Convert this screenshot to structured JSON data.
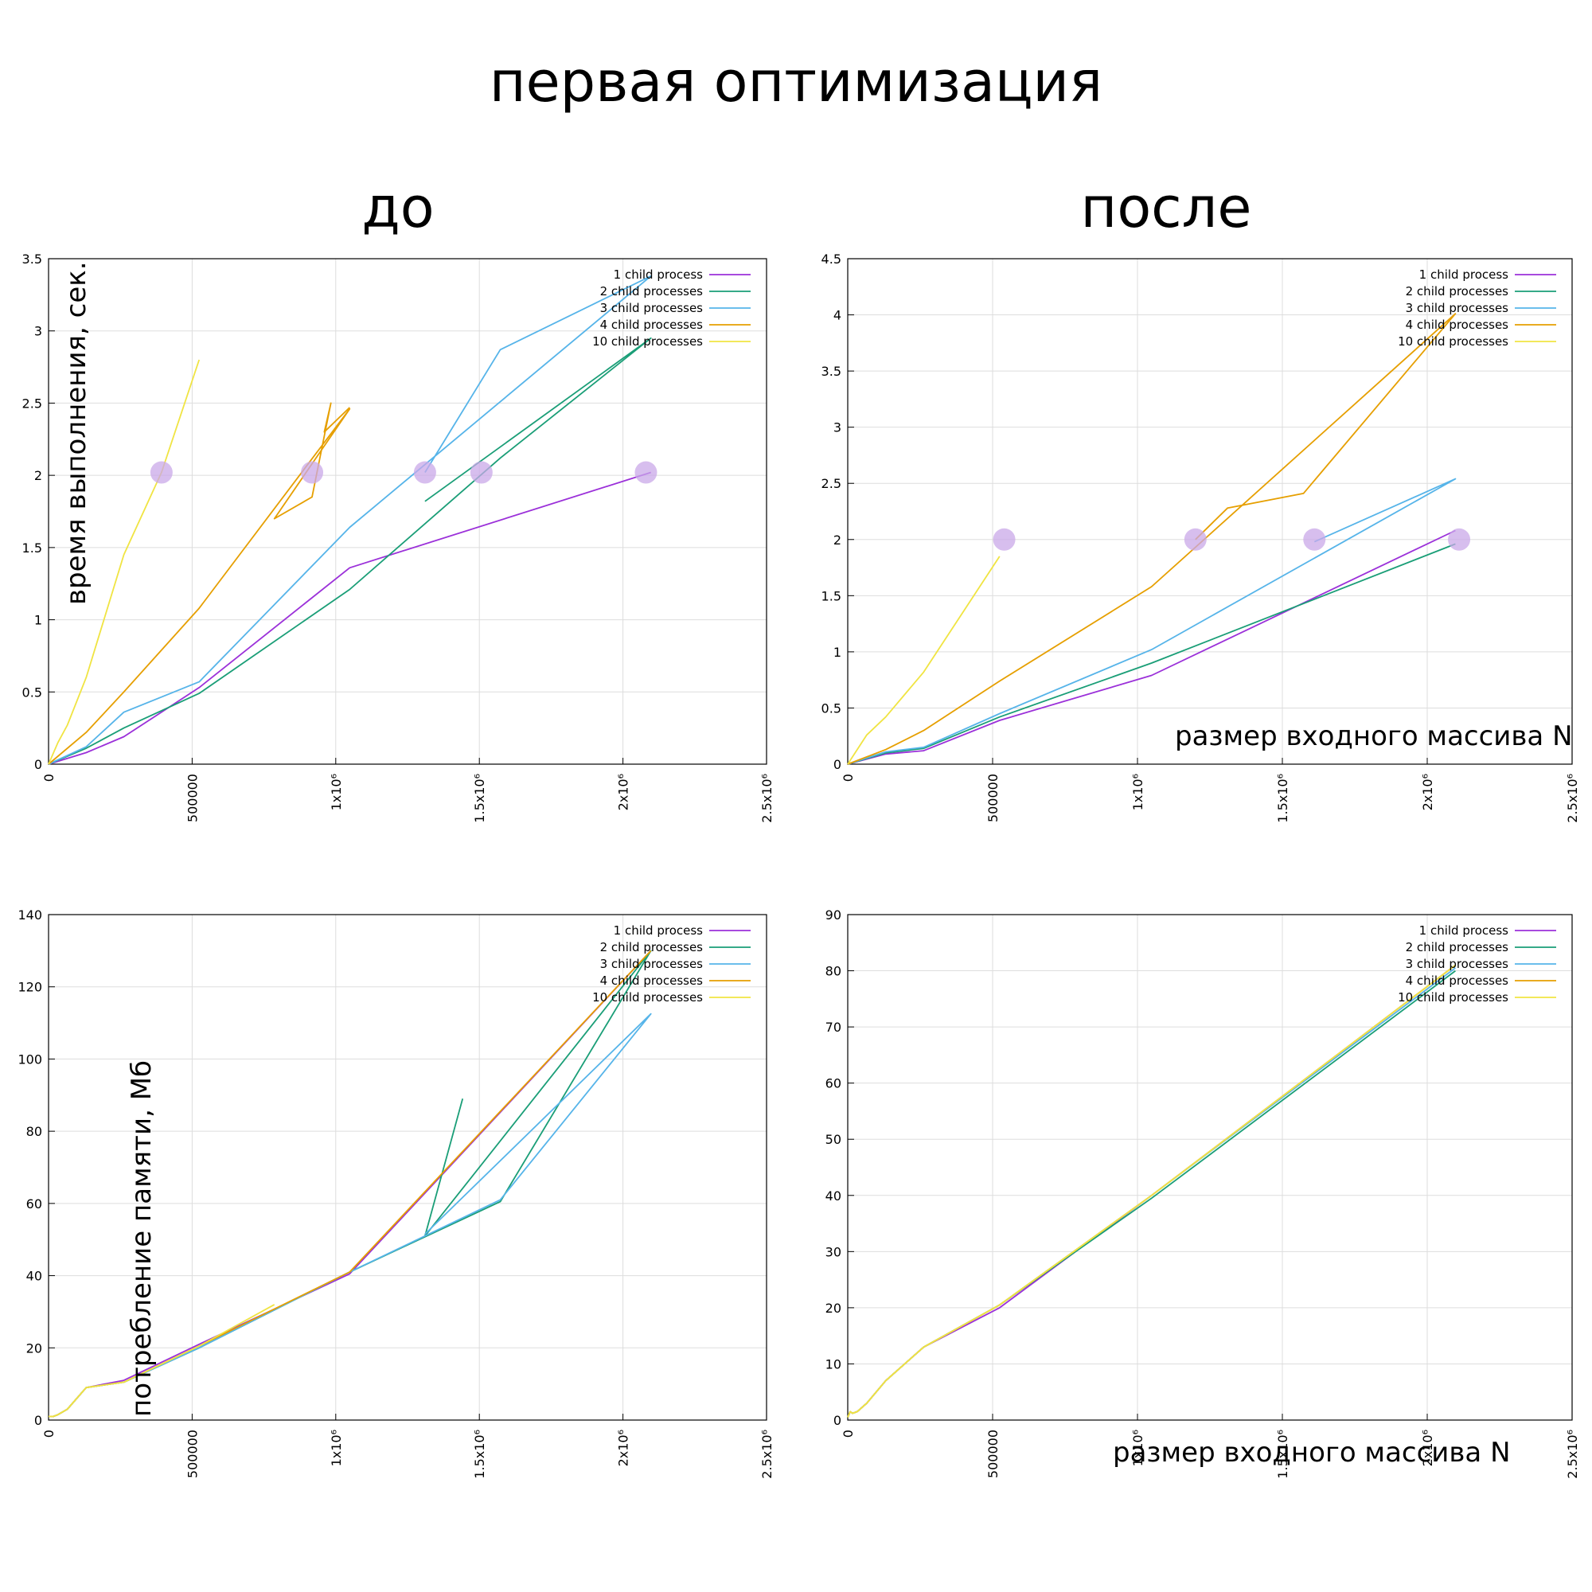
{
  "page": {
    "title": "первая оптимизация",
    "col_before": "до",
    "col_after": "после"
  },
  "colors": {
    "1 child process": "#9b30d9",
    "2 child processes": "#1a9e77",
    "3 child processes": "#56b4e9",
    "4 child processes": "#e69f00",
    "10 child processes": "#f0e442",
    "marker": "#c9a8e8"
  },
  "chart_data": [
    {
      "id": "time_before",
      "type": "line",
      "ylabel": "время выполнения, сек.",
      "xlabel": "",
      "xlim": [
        0,
        2500000
      ],
      "ylim": [
        0,
        3.5
      ],
      "xticks": [
        {
          "v": 0,
          "t": "0"
        },
        {
          "v": 500000,
          "t": "500000"
        },
        {
          "v": 1000000,
          "t": "1x10⁶"
        },
        {
          "v": 1500000,
          "t": "1.5x10⁶"
        },
        {
          "v": 2000000,
          "t": "2x10⁶"
        },
        {
          "v": 2500000,
          "t": "2.5x10⁶"
        }
      ],
      "yticks": [
        {
          "v": 0,
          "t": "0"
        },
        {
          "v": 0.5,
          "t": "0.5"
        },
        {
          "v": 1,
          "t": "1"
        },
        {
          "v": 1.5,
          "t": "1.5"
        },
        {
          "v": 2,
          "t": "2"
        },
        {
          "v": 2.5,
          "t": "2.5"
        },
        {
          "v": 3,
          "t": "3"
        },
        {
          "v": 3.5,
          "t": "3.5"
        }
      ],
      "grid": true,
      "legend": "top-right",
      "series": [
        {
          "name": "1 child process",
          "points": [
            [
              0,
              0
            ],
            [
              131072,
              0.08
            ],
            [
              262144,
              0.19
            ],
            [
              524288,
              0.53
            ],
            [
              1048576,
              1.36
            ],
            [
              2097152,
              2.02
            ]
          ]
        },
        {
          "name": "2 child processes",
          "points": [
            [
              0,
              0
            ],
            [
              131072,
              0.11
            ],
            [
              262144,
              0.25
            ],
            [
              524288,
              0.49
            ],
            [
              1048576,
              1.21
            ],
            [
              1572864,
              2.12
            ],
            [
              2097152,
              2.95
            ],
            [
              1310720,
              1.82
            ]
          ]
        },
        {
          "name": "3 child processes",
          "points": [
            [
              0,
              0
            ],
            [
              131072,
              0.12
            ],
            [
              262144,
              0.36
            ],
            [
              524288,
              0.57
            ],
            [
              1048576,
              1.64
            ],
            [
              2097152,
              3.38
            ],
            [
              1572864,
              2.87
            ],
            [
              1310720,
              2.02
            ]
          ]
        },
        {
          "name": "4 child processes",
          "points": [
            [
              0,
              0
            ],
            [
              131072,
              0.22
            ],
            [
              262144,
              0.5
            ],
            [
              524288,
              1.08
            ],
            [
              1048576,
              2.46
            ],
            [
              786432,
              1.7
            ],
            [
              917504,
              1.85
            ],
            [
              983040,
              2.5
            ],
            [
              960000,
              2.3
            ],
            [
              1048576,
              2.47
            ]
          ]
        },
        {
          "name": "10 child processes",
          "points": [
            [
              0,
              0
            ],
            [
              32768,
              0.15
            ],
            [
              65536,
              0.27
            ],
            [
              131072,
              0.6
            ],
            [
              262144,
              1.45
            ],
            [
              393216,
              2.02
            ],
            [
              524288,
              2.8
            ]
          ]
        }
      ],
      "markers": [
        [
          393216,
          2.02
        ],
        [
          917504,
          2.02
        ],
        [
          1310720,
          2.02
        ],
        [
          1507328,
          2.02
        ],
        [
          2080000,
          2.02
        ]
      ]
    },
    {
      "id": "time_after",
      "type": "line",
      "ylabel": "",
      "xlabel": "размер входного массива N",
      "xlim": [
        0,
        2500000
      ],
      "ylim": [
        0,
        4.5
      ],
      "xticks": [
        {
          "v": 0,
          "t": "0"
        },
        {
          "v": 500000,
          "t": "500000"
        },
        {
          "v": 1000000,
          "t": "1x10⁶"
        },
        {
          "v": 1500000,
          "t": "1.5x10⁶"
        },
        {
          "v": 2000000,
          "t": "2x10⁶"
        },
        {
          "v": 2500000,
          "t": "2.5x10⁶"
        }
      ],
      "yticks": [
        {
          "v": 0,
          "t": "0"
        },
        {
          "v": 0.5,
          "t": "0.5"
        },
        {
          "v": 1,
          "t": "1"
        },
        {
          "v": 1.5,
          "t": "1.5"
        },
        {
          "v": 2,
          "t": "2"
        },
        {
          "v": 2.5,
          "t": "2.5"
        },
        {
          "v": 3,
          "t": "3"
        },
        {
          "v": 3.5,
          "t": "3.5"
        },
        {
          "v": 4,
          "t": "4"
        },
        {
          "v": 4.5,
          "t": "4.5"
        }
      ],
      "grid": true,
      "legend": "top-right",
      "series": [
        {
          "name": "1 child process",
          "points": [
            [
              0,
              0
            ],
            [
              131072,
              0.09
            ],
            [
              262144,
              0.12
            ],
            [
              524288,
              0.39
            ],
            [
              1048576,
              0.79
            ],
            [
              2097152,
              2.08
            ]
          ]
        },
        {
          "name": "2 child processes",
          "points": [
            [
              0,
              0
            ],
            [
              131072,
              0.1
            ],
            [
              262144,
              0.14
            ],
            [
              524288,
              0.42
            ],
            [
              1048576,
              0.9
            ],
            [
              2097152,
              1.96
            ]
          ]
        },
        {
          "name": "3 child processes",
          "points": [
            [
              0,
              0
            ],
            [
              131072,
              0.11
            ],
            [
              262144,
              0.15
            ],
            [
              524288,
              0.45
            ],
            [
              1048576,
              1.02
            ],
            [
              2097152,
              2.54
            ],
            [
              1610612,
              1.98
            ]
          ]
        },
        {
          "name": "4 child processes",
          "points": [
            [
              0,
              0
            ],
            [
              131072,
              0.13
            ],
            [
              262144,
              0.3
            ],
            [
              524288,
              0.74
            ],
            [
              1048576,
              1.58
            ],
            [
              2097152,
              4.01
            ],
            [
              1572864,
              2.41
            ],
            [
              1310720,
              2.28
            ],
            [
              1200000,
              2.0
            ]
          ]
        },
        {
          "name": "10 child processes",
          "points": [
            [
              0,
              0
            ],
            [
              65536,
              0.26
            ],
            [
              131072,
              0.42
            ],
            [
              262144,
              0.82
            ],
            [
              524288,
              1.85
            ]
          ]
        }
      ],
      "markers": [
        [
          540000,
          2.0
        ],
        [
          1200000,
          2.0
        ],
        [
          1610612,
          2.0
        ],
        [
          2110000,
          2.0
        ]
      ]
    },
    {
      "id": "mem_before",
      "type": "line",
      "ylabel": "потребление памяти, Мб",
      "xlabel": "",
      "xlim": [
        0,
        2500000
      ],
      "ylim": [
        0,
        140
      ],
      "xticks": [
        {
          "v": 0,
          "t": "0"
        },
        {
          "v": 500000,
          "t": "500000"
        },
        {
          "v": 1000000,
          "t": "1x10⁶"
        },
        {
          "v": 1500000,
          "t": "1.5x10⁶"
        },
        {
          "v": 2000000,
          "t": "2x10⁶"
        },
        {
          "v": 2500000,
          "t": "2.5x10⁶"
        }
      ],
      "yticks": [
        {
          "v": 0,
          "t": "0"
        },
        {
          "v": 20,
          "t": "20"
        },
        {
          "v": 40,
          "t": "40"
        },
        {
          "v": 60,
          "t": "60"
        },
        {
          "v": 80,
          "t": "80"
        },
        {
          "v": 100,
          "t": "100"
        },
        {
          "v": 120,
          "t": "120"
        },
        {
          "v": 140,
          "t": "140"
        }
      ],
      "grid": true,
      "legend": "top-right",
      "series": [
        {
          "name": "1 child process",
          "points": [
            [
              0,
              1
            ],
            [
              16384,
              1
            ],
            [
              32768,
              1.5
            ],
            [
              65536,
              3
            ],
            [
              131072,
              9
            ],
            [
              262144,
              11
            ],
            [
              524288,
              21
            ],
            [
              1048576,
              40.5
            ],
            [
              2097152,
              130
            ]
          ]
        },
        {
          "name": "2 child processes",
          "points": [
            [
              0,
              1
            ],
            [
              16384,
              1
            ],
            [
              32768,
              1.5
            ],
            [
              65536,
              3
            ],
            [
              131072,
              9
            ],
            [
              262144,
              10.5
            ],
            [
              524288,
              20
            ],
            [
              1048576,
              41
            ],
            [
              1572864,
              60.5
            ],
            [
              2097152,
              130
            ],
            [
              1310720,
              51
            ],
            [
              1441792,
              89
            ]
          ]
        },
        {
          "name": "3 child processes",
          "points": [
            [
              0,
              1
            ],
            [
              16384,
              1
            ],
            [
              32768,
              1.5
            ],
            [
              65536,
              3
            ],
            [
              131072,
              9
            ],
            [
              262144,
              10.5
            ],
            [
              524288,
              20
            ],
            [
              1048576,
              41
            ],
            [
              1572864,
              61
            ],
            [
              2097152,
              112.5
            ],
            [
              1310720,
              51.5
            ]
          ]
        },
        {
          "name": "4 child processes",
          "points": [
            [
              0,
              1
            ],
            [
              16384,
              1
            ],
            [
              32768,
              1.5
            ],
            [
              65536,
              3
            ],
            [
              131072,
              9
            ],
            [
              262144,
              10.5
            ],
            [
              524288,
              20.5
            ],
            [
              1048576,
              41
            ],
            [
              2097152,
              130
            ]
          ]
        },
        {
          "name": "10 child processes",
          "points": [
            [
              0,
              1
            ],
            [
              16384,
              1
            ],
            [
              32768,
              1.5
            ],
            [
              65536,
              3
            ],
            [
              131072,
              9
            ],
            [
              262144,
              10.5
            ],
            [
              524288,
              20.5
            ],
            [
              786432,
              32
            ]
          ]
        }
      ],
      "markers": []
    },
    {
      "id": "mem_after",
      "type": "line",
      "ylabel": "",
      "xlabel": "размер входного массива N",
      "xlim": [
        0,
        2500000
      ],
      "ylim": [
        0,
        90
      ],
      "xticks": [
        {
          "v": 0,
          "t": "0"
        },
        {
          "v": 500000,
          "t": "500000"
        },
        {
          "v": 1000000,
          "t": "1x10⁶"
        },
        {
          "v": 1500000,
          "t": "1.5x10⁶"
        },
        {
          "v": 2000000,
          "t": "2x10⁶"
        },
        {
          "v": 2500000,
          "t": "2.5x10⁶"
        }
      ],
      "yticks": [
        {
          "v": 0,
          "t": "0"
        },
        {
          "v": 10,
          "t": "10"
        },
        {
          "v": 20,
          "t": "20"
        },
        {
          "v": 30,
          "t": "30"
        },
        {
          "v": 40,
          "t": "40"
        },
        {
          "v": 50,
          "t": "50"
        },
        {
          "v": 60,
          "t": "60"
        },
        {
          "v": 70,
          "t": "70"
        },
        {
          "v": 80,
          "t": "80"
        },
        {
          "v": 90,
          "t": "90"
        }
      ],
      "grid": true,
      "legend": "top-right",
      "series": [
        {
          "name": "1 child process",
          "points": [
            [
              0,
              0.5
            ],
            [
              8192,
              1.5
            ],
            [
              16384,
              1.2
            ],
            [
              32768,
              1.5
            ],
            [
              65536,
              3
            ],
            [
              131072,
              7
            ],
            [
              262144,
              13
            ],
            [
              524288,
              20
            ],
            [
              1048576,
              40
            ],
            [
              2097152,
              81
            ]
          ]
        },
        {
          "name": "2 child processes",
          "points": [
            [
              0,
              0.5
            ],
            [
              8192,
              1.5
            ],
            [
              16384,
              1.2
            ],
            [
              32768,
              1.5
            ],
            [
              65536,
              3
            ],
            [
              131072,
              7
            ],
            [
              262144,
              13
            ],
            [
              524288,
              20.5
            ],
            [
              1048576,
              39.5
            ],
            [
              2097152,
              80
            ]
          ]
        },
        {
          "name": "3 child processes",
          "points": [
            [
              0,
              0.5
            ],
            [
              8192,
              1.5
            ],
            [
              16384,
              1.2
            ],
            [
              32768,
              1.5
            ],
            [
              65536,
              3
            ],
            [
              131072,
              7
            ],
            [
              262144,
              13
            ],
            [
              524288,
              20.5
            ],
            [
              1048576,
              40
            ],
            [
              2097152,
              80.5
            ]
          ]
        },
        {
          "name": "4 child processes",
          "points": [
            [
              0,
              0.5
            ],
            [
              8192,
              1.5
            ],
            [
              16384,
              1.2
            ],
            [
              32768,
              1.5
            ],
            [
              65536,
              3
            ],
            [
              131072,
              7
            ],
            [
              262144,
              13
            ],
            [
              524288,
              20.5
            ],
            [
              1048576,
              40
            ],
            [
              2097152,
              81
            ]
          ]
        },
        {
          "name": "10 child processes",
          "points": [
            [
              0,
              0.5
            ],
            [
              8192,
              1.5
            ],
            [
              16384,
              1.2
            ],
            [
              32768,
              1.5
            ],
            [
              65536,
              3
            ],
            [
              131072,
              7
            ],
            [
              262144,
              13
            ],
            [
              524288,
              20.5
            ],
            [
              1048576,
              40
            ],
            [
              2097152,
              81
            ]
          ]
        }
      ],
      "markers": []
    }
  ]
}
